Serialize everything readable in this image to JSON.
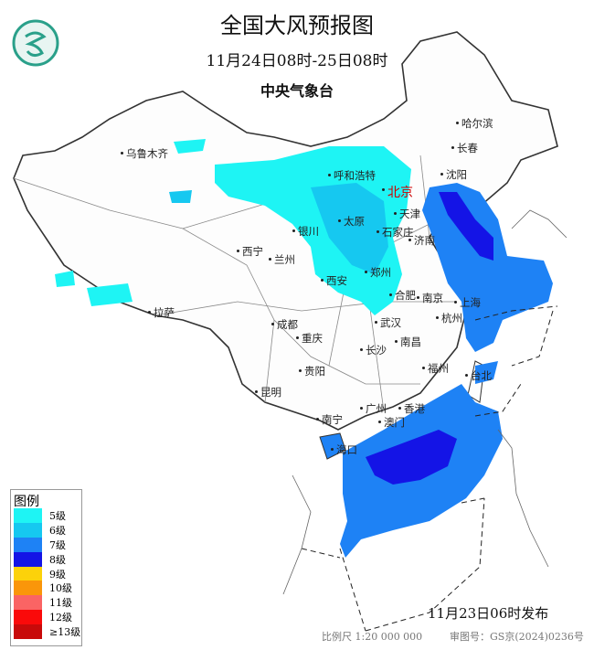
{
  "title": "全国大风预报图",
  "period": "11月24日08时-25日08时",
  "agency": "中央气象台",
  "issue_time": "11月23日06时发布",
  "scale": "比例尺 1:20 000 000",
  "review_no": "审图号：GS京(2024)0236号",
  "legend": {
    "title": "图例",
    "items": [
      {
        "label": "5级",
        "color": "#1ef4f4"
      },
      {
        "label": "6级",
        "color": "#16c8f0"
      },
      {
        "label": "7级",
        "color": "#1e82f5"
      },
      {
        "label": "8级",
        "color": "#1414e6"
      },
      {
        "label": "9级",
        "color": "#fcd20a"
      },
      {
        "label": "10级",
        "color": "#fa960a"
      },
      {
        "label": "11级",
        "color": "#fa6464"
      },
      {
        "label": "12级",
        "color": "#fa0a0a"
      },
      {
        "label": "≥13级",
        "color": "#c80a0a"
      }
    ]
  },
  "cities": [
    {
      "name": "乌鲁木齐"
    },
    {
      "name": "哈尔滨"
    },
    {
      "name": "长春"
    },
    {
      "name": "沈阳"
    },
    {
      "name": "北京"
    },
    {
      "name": "呼和浩特"
    },
    {
      "name": "天津"
    },
    {
      "name": "银川"
    },
    {
      "name": "太原"
    },
    {
      "name": "石家庄"
    },
    {
      "name": "济南"
    },
    {
      "name": "西宁"
    },
    {
      "name": "兰州"
    },
    {
      "name": "西安"
    },
    {
      "name": "郑州"
    },
    {
      "name": "合肥"
    },
    {
      "name": "南京"
    },
    {
      "name": "上海"
    },
    {
      "name": "拉萨"
    },
    {
      "name": "成都"
    },
    {
      "name": "重庆"
    },
    {
      "name": "武汉"
    },
    {
      "name": "杭州"
    },
    {
      "name": "南昌"
    },
    {
      "name": "长沙"
    },
    {
      "name": "贵阳"
    },
    {
      "name": "福州"
    },
    {
      "name": "台北"
    },
    {
      "name": "昆明"
    },
    {
      "name": "南宁"
    },
    {
      "name": "广州"
    },
    {
      "name": "香港"
    },
    {
      "name": "澳门"
    },
    {
      "name": "海口"
    }
  ]
}
